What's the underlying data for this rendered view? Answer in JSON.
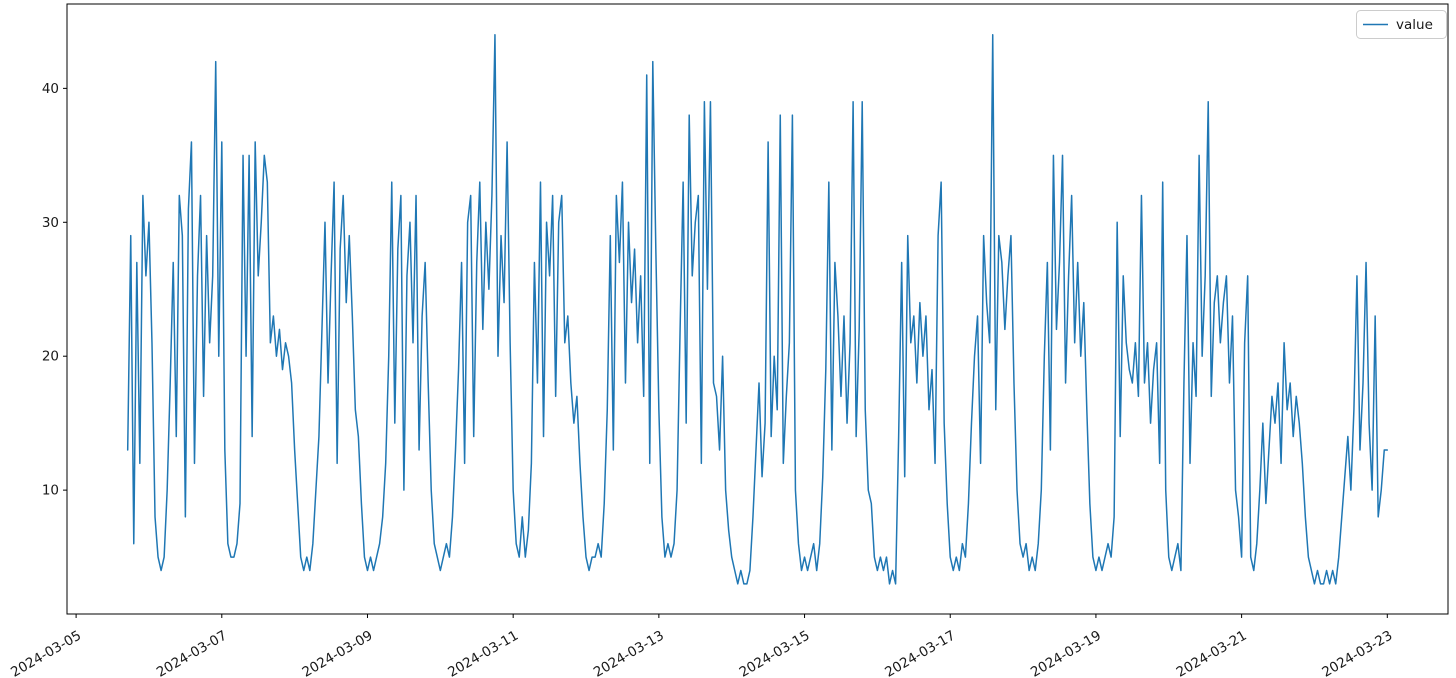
{
  "chart_data": {
    "type": "line",
    "title": "",
    "xlabel": "",
    "ylabel": "",
    "grid": false,
    "legend": {
      "position": "upper right",
      "entries": [
        "value"
      ]
    },
    "x_tick_labels": [
      "2024-03-05",
      "2024-03-07",
      "2024-03-09",
      "2024-03-11",
      "2024-03-13",
      "2024-03-15",
      "2024-03-17",
      "2024-03-19",
      "2024-03-21",
      "2024-03-23"
    ],
    "y_ticks": [
      10,
      20,
      30,
      40
    ],
    "xlim": [
      "2024-03-04T21:00:00",
      "2024-03-23T20:00:00"
    ],
    "ylim": [
      0.75,
      46.3
    ],
    "x_start": "2024-03-05T17:00:00",
    "x_interval_hours": 1,
    "series": [
      {
        "name": "value",
        "color": "#1f77b4",
        "values": [
          13,
          29,
          6,
          27,
          12,
          32,
          26,
          30,
          21,
          8,
          5,
          4,
          5,
          10,
          18,
          27,
          14,
          32,
          29,
          8,
          31,
          36,
          12,
          26,
          32,
          17,
          29,
          21,
          26,
          42,
          20,
          36,
          13,
          6,
          5,
          5,
          6,
          9,
          35,
          20,
          35,
          14,
          36,
          26,
          30,
          35,
          33,
          21,
          23,
          20,
          22,
          19,
          21,
          20,
          18,
          13,
          9,
          5,
          4,
          5,
          4,
          6,
          10,
          14,
          22,
          30,
          18,
          26,
          33,
          12,
          28,
          32,
          24,
          29,
          23,
          16,
          14,
          9,
          5,
          4,
          5,
          4,
          5,
          6,
          8,
          12,
          20,
          33,
          15,
          28,
          32,
          10,
          26,
          30,
          21,
          32,
          13,
          23,
          27,
          18,
          10,
          6,
          5,
          4,
          5,
          6,
          5,
          8,
          13,
          19,
          27,
          12,
          30,
          32,
          14,
          27,
          33,
          22,
          30,
          25,
          32,
          44,
          20,
          29,
          24,
          36,
          21,
          10,
          6,
          5,
          8,
          5,
          7,
          12,
          27,
          18,
          33,
          14,
          30,
          26,
          32,
          17,
          30,
          32,
          21,
          23,
          18,
          15,
          17,
          12,
          8,
          5,
          4,
          5,
          5,
          6,
          5,
          9,
          16,
          29,
          13,
          32,
          27,
          33,
          18,
          30,
          24,
          28,
          21,
          26,
          17,
          41,
          12,
          42,
          28,
          16,
          8,
          5,
          6,
          5,
          6,
          10,
          22,
          33,
          15,
          38,
          26,
          30,
          32,
          12,
          39,
          25,
          39,
          18,
          17,
          13,
          20,
          10,
          7,
          5,
          4,
          3,
          4,
          3,
          3,
          4,
          8,
          13,
          18,
          11,
          15,
          36,
          14,
          20,
          16,
          38,
          12,
          17,
          21,
          38,
          10,
          6,
          4,
          5,
          4,
          5,
          6,
          4,
          6,
          11,
          19,
          33,
          13,
          27,
          23,
          17,
          23,
          15,
          21,
          39,
          14,
          22,
          39,
          16,
          10,
          9,
          5,
          4,
          5,
          4,
          5,
          3,
          4,
          3,
          14,
          27,
          11,
          29,
          21,
          23,
          18,
          24,
          20,
          23,
          16,
          19,
          12,
          29,
          33,
          15,
          9,
          5,
          4,
          5,
          4,
          6,
          5,
          9,
          15,
          20,
          23,
          12,
          29,
          24,
          21,
          44,
          16,
          29,
          27,
          22,
          26,
          29,
          18,
          10,
          6,
          5,
          6,
          4,
          5,
          4,
          6,
          10,
          20,
          27,
          13,
          35,
          22,
          27,
          35,
          18,
          26,
          32,
          21,
          27,
          20,
          24,
          16,
          9,
          5,
          4,
          5,
          4,
          5,
          6,
          5,
          8,
          30,
          14,
          26,
          21,
          19,
          18,
          21,
          17,
          32,
          18,
          21,
          15,
          19,
          21,
          12,
          33,
          10,
          5,
          4,
          5,
          6,
          4,
          18,
          29,
          12,
          21,
          17,
          35,
          20,
          26,
          39,
          17,
          24,
          26,
          21,
          24,
          26,
          18,
          23,
          10,
          8,
          5,
          21,
          26,
          5,
          4,
          6,
          10,
          15,
          9,
          13,
          17,
          15,
          18,
          12,
          21,
          16,
          18,
          14,
          17,
          15,
          12,
          8,
          5,
          4,
          3,
          4,
          3,
          3,
          4,
          3,
          4,
          3,
          5,
          8,
          11,
          14,
          10,
          16,
          26,
          13,
          18,
          27,
          15,
          10,
          23,
          8,
          10,
          13,
          13
        ]
      }
    ]
  },
  "colors": {
    "line": "#1f77b4",
    "axis": "#000000",
    "tick_text": "#1a1a1a",
    "legend_border": "#cccccc",
    "background": "#ffffff"
  }
}
